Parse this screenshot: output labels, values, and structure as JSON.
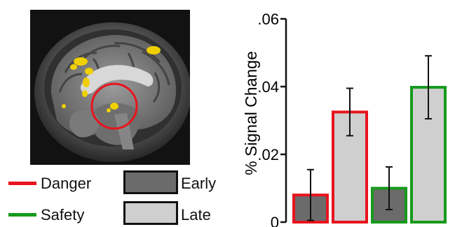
{
  "legend": {
    "condition_items": [
      {
        "label": "Danger",
        "color": "#e8141e"
      },
      {
        "label": "Safety",
        "color": "#169a1c"
      }
    ],
    "phase_items": [
      {
        "label": "Early",
        "fill": "#6b6b6b"
      },
      {
        "label": "Late",
        "fill": "#cfcfcf"
      }
    ]
  },
  "brain_image": {
    "icon": "sagittal-brain-fmri-slice",
    "activation_color": "#f0d000",
    "highlight_circle_color": "#e8141e"
  },
  "chart_data": {
    "type": "bar",
    "ylabel": "% Signal Change",
    "ylim": [
      0,
      0.06
    ],
    "yticks": [
      0,
      0.02,
      0.04,
      0.06
    ],
    "ytick_labels": [
      "0",
      ".02",
      ".04",
      ".06"
    ],
    "grid": false,
    "legend_position": "left",
    "bars": [
      {
        "condition": "Danger",
        "phase": "Early",
        "value": 0.008,
        "error": 0.0075,
        "fill": "#6b6b6b",
        "edge": "#e8141e"
      },
      {
        "condition": "Danger",
        "phase": "Late",
        "value": 0.0325,
        "error": 0.007,
        "fill": "#cfcfcf",
        "edge": "#e8141e"
      },
      {
        "condition": "Safety",
        "phase": "Early",
        "value": 0.01,
        "error": 0.0063,
        "fill": "#6b6b6b",
        "edge": "#169a1c"
      },
      {
        "condition": "Safety",
        "phase": "Late",
        "value": 0.0398,
        "error": 0.0093,
        "fill": "#cfcfcf",
        "edge": "#169a1c"
      }
    ]
  }
}
